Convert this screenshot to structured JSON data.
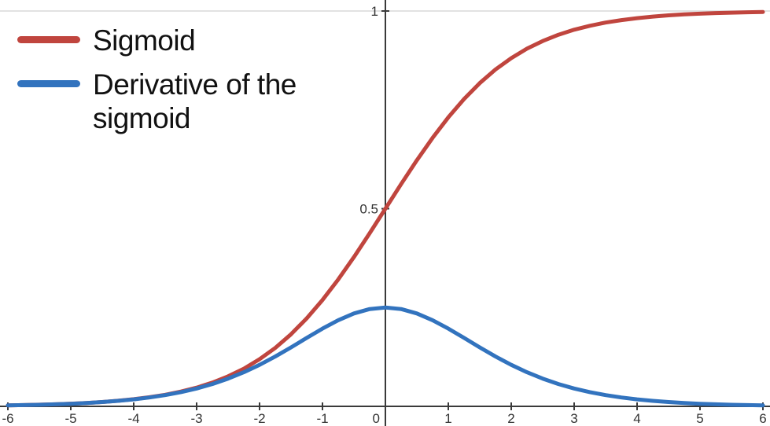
{
  "chart_data": {
    "type": "line",
    "title": "",
    "xlabel": "",
    "ylabel": "",
    "xlim": [
      -6.1,
      6.1
    ],
    "ylim": [
      0,
      1.04
    ],
    "x_ticks": [
      -6,
      -5,
      -4,
      -3,
      -2,
      -1,
      0,
      1,
      2,
      3,
      4,
      5,
      6
    ],
    "x_tick_labels": [
      "-6",
      "-5",
      "-4",
      "-3",
      "-2",
      "-1",
      "0",
      "1",
      "2",
      "3",
      "4",
      "5",
      "6"
    ],
    "y_ticks": [
      0.5,
      1
    ],
    "y_tick_labels": [
      "0.5",
      "1"
    ],
    "grid": "single horizontal gridline at y=1",
    "legend_position": "top-left",
    "colors": {
      "axis": "#3a3a3a",
      "gridline": "#d9d9d9",
      "tick_text": "#333333"
    },
    "x": [
      -6,
      -5.75,
      -5.5,
      -5.25,
      -5,
      -4.75,
      -4.5,
      -4.25,
      -4,
      -3.75,
      -3.5,
      -3.25,
      -3,
      -2.75,
      -2.5,
      -2.25,
      -2,
      -1.75,
      -1.5,
      -1.25,
      -1,
      -0.75,
      -0.5,
      -0.25,
      0,
      0.25,
      0.5,
      0.75,
      1,
      1.25,
      1.5,
      1.75,
      2,
      2.25,
      2.5,
      2.75,
      3,
      3.25,
      3.5,
      3.75,
      4,
      4.25,
      4.5,
      4.75,
      5,
      5.25,
      5.5,
      5.75,
      6
    ],
    "series": [
      {
        "name": "Sigmoid",
        "color": "#c0453e",
        "values": [
          0.0025,
          0.0032,
          0.0041,
          0.0052,
          0.0067,
          0.0086,
          0.011,
          0.0141,
          0.018,
          0.023,
          0.0293,
          0.0373,
          0.0474,
          0.0601,
          0.0759,
          0.0953,
          0.1192,
          0.148,
          0.1824,
          0.2227,
          0.2689,
          0.3208,
          0.3775,
          0.4378,
          0.5,
          0.5622,
          0.6225,
          0.6792,
          0.7311,
          0.7773,
          0.8176,
          0.852,
          0.8808,
          0.9047,
          0.9241,
          0.9399,
          0.9526,
          0.9627,
          0.9707,
          0.977,
          0.982,
          0.9859,
          0.989,
          0.9914,
          0.9933,
          0.9948,
          0.9959,
          0.9968,
          0.9975
        ]
      },
      {
        "name": "Derivative of the sigmoid",
        "color": "#3273be",
        "values": [
          0.0025,
          0.0032,
          0.004,
          0.0052,
          0.0066,
          0.0085,
          0.0109,
          0.0139,
          0.0177,
          0.0224,
          0.0284,
          0.0359,
          0.0452,
          0.0565,
          0.0701,
          0.0862,
          0.105,
          0.1261,
          0.1491,
          0.1731,
          0.1966,
          0.2179,
          0.235,
          0.2461,
          0.25,
          0.2461,
          0.235,
          0.2179,
          0.1966,
          0.1731,
          0.1491,
          0.1261,
          0.105,
          0.0862,
          0.0701,
          0.0565,
          0.0452,
          0.0359,
          0.0284,
          0.0224,
          0.0177,
          0.0139,
          0.0109,
          0.0085,
          0.0066,
          0.0052,
          0.004,
          0.0032,
          0.0025
        ]
      }
    ]
  }
}
